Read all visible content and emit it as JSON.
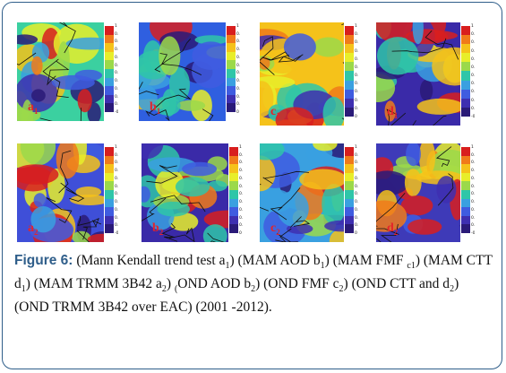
{
  "figure": {
    "label": "Figure 6:",
    "caption_html": "(Mann Kendall trend test a<sub>1</sub>) (MAM AOD b<sub>1</sub>) (MAM FMF <sub>c1</sub>) (MAM CTT d<sub>1</sub>) (MAM TRMM 3B42 a<sub>2</sub>) <sub>(</sub>OND AOD b<sub>2</sub>) (OND FMF c<sub>2</sub>) (OND CTT and d<sub>2</sub>) (OND TRMM 3B42 over EAC) (2001 -2012)."
  },
  "colorbar_colors": [
    "#d81e1e",
    "#f07a1a",
    "#f5c21a",
    "#e8ee2a",
    "#9bd94a",
    "#2fc6a8",
    "#3aa0e0",
    "#3f5ce0",
    "#3e2fb0",
    "#2a1a78"
  ],
  "panels": [
    {
      "label": "a",
      "sub": "1",
      "ticks": [
        "1",
        "0.9",
        "0.8",
        "0.7",
        "0.6",
        "0.5",
        "0.4",
        "0.3",
        "0.2",
        "0.1",
        "0.05",
        "-0.1"
      ]
    },
    {
      "label": "b",
      "sub": "1",
      "ticks": [
        "1",
        "0.9",
        "0.8",
        "0.7",
        "0.6",
        "0.5",
        "0.4",
        "0.3",
        "0.2",
        "0.1",
        "0.05",
        "0"
      ]
    },
    {
      "label": "c",
      "sub": "1",
      "ticks": [
        "1",
        "0.9",
        "0.8",
        "0.7",
        "0.6",
        "0.5",
        "0.4",
        "0.3",
        "0.2",
        "0.1",
        "0.05",
        "0"
      ]
    },
    {
      "label": "d",
      "sub": "1",
      "ticks": [
        "1",
        "0.9",
        "0.8",
        "0.7",
        "0.6",
        "0.5",
        "0.4",
        "0.3",
        "0.2",
        "0.1",
        "0.05",
        "-0.2"
      ]
    },
    {
      "label": "a",
      "sub": "2",
      "ticks": [
        "1",
        "0.9",
        "0.8",
        "0.7",
        "0.6",
        "0.5",
        "0.4",
        "0.3",
        "0.2",
        "0.1",
        "0.05",
        "-0.2"
      ]
    },
    {
      "label": "b",
      "sub": "2",
      "ticks": [
        "1",
        "0.9",
        "0.8",
        "0.7",
        "0.6",
        "0.5",
        "0.4",
        "0.3",
        "0.2",
        "0.1",
        "0.05",
        "0"
      ]
    },
    {
      "label": "c",
      "sub": "2",
      "ticks": [
        "1",
        "0.9",
        "0.8",
        "0.7",
        "0.6",
        "0.5",
        "0.4",
        "0.3",
        "0.2",
        "0.1",
        "0.05",
        "0"
      ]
    },
    {
      "label": "d",
      "sub": "2",
      "ticks": [
        "1",
        "0.9",
        "0.8",
        "0.7",
        "0.6",
        "0.5",
        "0.4",
        "0.3",
        "0.2",
        "0.1",
        "0.05",
        "-0.2"
      ]
    }
  ]
}
